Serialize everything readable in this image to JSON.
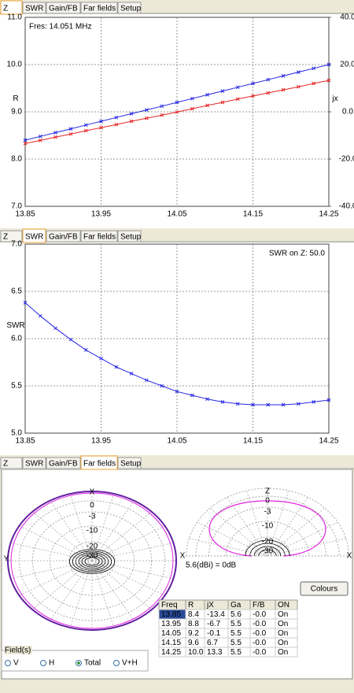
{
  "tabs": [
    "Z",
    "SWR",
    "Gain/FB",
    "Far fields",
    "Setup"
  ],
  "chart_data": [
    {
      "type": "line",
      "annotation": "Fres: 14.051 MHz",
      "ylabel": "R",
      "y2label": "jx",
      "x": [
        13.85,
        13.87,
        13.89,
        13.91,
        13.93,
        13.95,
        13.97,
        13.99,
        14.01,
        14.03,
        14.05,
        14.07,
        14.09,
        14.11,
        14.13,
        14.15,
        14.17,
        14.19,
        14.21,
        14.23,
        14.25
      ],
      "xlim": [
        13.85,
        14.25
      ],
      "xticks": [
        13.85,
        13.95,
        14.05,
        14.15,
        14.25
      ],
      "ylim": [
        7,
        11
      ],
      "yticks": [
        {
          "value": 7,
          "label": "7.0"
        },
        {
          "value": 8,
          "label": "8.0"
        },
        {
          "value": 9,
          "label": "9.0"
        },
        {
          "value": 10,
          "label": "10.0"
        },
        {
          "value": 11,
          "label": "11.0"
        }
      ],
      "y2lim": [
        -40,
        40
      ],
      "y2ticks": [
        {
          "value": -40,
          "label": "-40.0"
        },
        {
          "value": -20,
          "label": "-20.0"
        },
        {
          "value": 0,
          "label": "0.0"
        },
        {
          "value": 20,
          "label": "20.0"
        },
        {
          "value": 40,
          "label": "40.0"
        }
      ],
      "grid": true,
      "series": [
        {
          "name": "R",
          "color": "#2626e6",
          "values": [
            8.4,
            8.48,
            8.56,
            8.64,
            8.72,
            8.8,
            8.88,
            8.96,
            9.04,
            9.12,
            9.2,
            9.28,
            9.36,
            9.44,
            9.52,
            9.6,
            9.68,
            9.76,
            9.84,
            9.92,
            10.0
          ]
        },
        {
          "name": "jx",
          "color": "#e62626",
          "axis": "y2",
          "values": [
            -13.4,
            -12.1,
            -10.7,
            -9.4,
            -8.0,
            -6.7,
            -5.4,
            -4.0,
            -2.7,
            -1.4,
            -0.1,
            1.3,
            2.7,
            4.0,
            5.4,
            6.7,
            8.0,
            9.3,
            10.6,
            12.0,
            13.3
          ]
        }
      ]
    },
    {
      "type": "line",
      "annotation": "SWR on Z: 50.0",
      "ylabel": "SWR",
      "x": [
        13.85,
        13.87,
        13.89,
        13.91,
        13.93,
        13.95,
        13.97,
        13.99,
        14.01,
        14.03,
        14.05,
        14.07,
        14.09,
        14.11,
        14.13,
        14.15,
        14.17,
        14.19,
        14.21,
        14.23,
        14.25
      ],
      "xlim": [
        13.85,
        14.25
      ],
      "xticks": [
        13.85,
        13.95,
        14.05,
        14.15,
        14.25
      ],
      "ylim": [
        5,
        7
      ],
      "yticks": [
        {
          "value": 5,
          "label": "5.0"
        },
        {
          "value": 5.5,
          "label": "5.5"
        },
        {
          "value": 6,
          "label": "6.0"
        },
        {
          "value": 6.5,
          "label": "6.5"
        },
        {
          "value": 7,
          "label": "7.0"
        }
      ],
      "grid": true,
      "series": [
        {
          "name": "SWR",
          "color": "#2626e6",
          "values": [
            6.38,
            6.24,
            6.11,
            5.99,
            5.88,
            5.79,
            5.7,
            5.63,
            5.56,
            5.5,
            5.44,
            5.4,
            5.36,
            5.33,
            5.31,
            5.3,
            5.3,
            5.3,
            5.31,
            5.33,
            5.35
          ]
        }
      ]
    }
  ],
  "far_fields": {
    "ring_labels": [
      "0",
      "-3",
      "-10",
      "-20",
      "-30"
    ],
    "azimuth_axes": [
      "X",
      "Y"
    ],
    "elevation_axes": [
      "Z",
      "X",
      "X"
    ],
    "reference": "5.6(dBi) = 0dB",
    "button": "Colours",
    "table": {
      "header": [
        "Freq",
        "R",
        "jX",
        "Ga",
        "F/B",
        "ON"
      ],
      "rows": [
        {
          "color": "#000000",
          "cells": [
            "13.85",
            "8.4",
            "-13.4",
            "5.6",
            "-0.0",
            "On"
          ]
        },
        {
          "color": "#e02020",
          "cells": [
            "13.95",
            "8.8",
            "-6.7",
            "5.5",
            "-0.0",
            "On"
          ]
        },
        {
          "color": "#2020e0",
          "cells": [
            "14.05",
            "9.2",
            "-0.1",
            "5.5",
            "-0.0",
            "On"
          ]
        },
        {
          "color": "#8a8a20",
          "cells": [
            "14.15",
            "9.6",
            "6.7",
            "5.5",
            "-0.0",
            "On"
          ]
        },
        {
          "color": "#e020e0",
          "cells": [
            "14.25",
            "10.0",
            "13.3",
            "5.5",
            "-0.0",
            "On"
          ]
        }
      ]
    },
    "field_group": "Field(s)",
    "field_options": [
      "V",
      "H",
      "Total",
      "V+H"
    ]
  }
}
